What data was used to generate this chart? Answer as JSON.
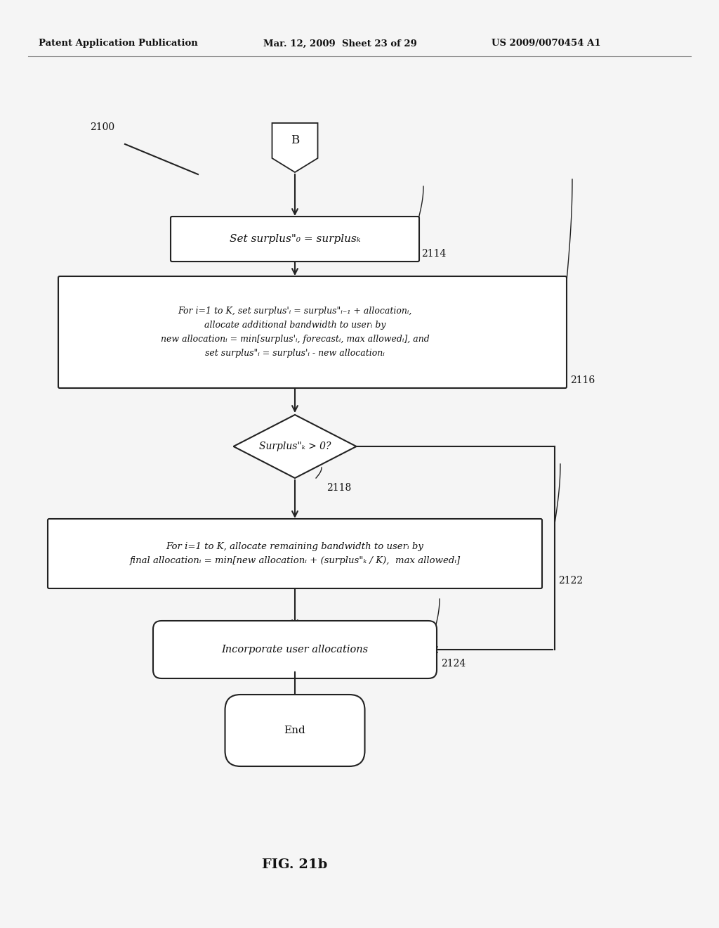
{
  "header_left": "Patent Application Publication",
  "header_center": "Mar. 12, 2009  Sheet 23 of 29",
  "header_right": "US 2009/0070454 A1",
  "fig_label": "FIG. 21b",
  "ref_2100": "2100",
  "ref_2114": "2114",
  "ref_2116": "2116",
  "ref_2118": "2118",
  "ref_2122": "2122",
  "ref_2124": "2124",
  "connector_label": "B",
  "box1_text": "Set surplus\"₀ = surplusₖ",
  "box2_line1": "For i=1 to K, set surplus'ᵢ = surplus\"ᵢ₋₁ + allocationᵢ,",
  "box2_line2": "allocate additional bandwidth to userᵢ by",
  "box2_line3": "new allocationᵢ = min[surplus'ᵢ, forecastᵢ, max allowedᵢ], and",
  "box2_line4": "set surplus\"ᵢ = surplus'ᵢ - new allocationᵢ",
  "diamond_text": "Surplus\"ₖ > 0?",
  "box3_line1": "For i=1 to K, allocate remaining bandwidth to userᵢ by",
  "box3_line2": "final allocationᵢ = min[new allocationᵢ + (surplus\"ₖ / K),  max allowedᵢ]",
  "box4_text": "Incorporate user allocations",
  "end_text": "End",
  "bg_color": "#f5f5f5",
  "box_edge_color": "#222222",
  "text_color": "#111111",
  "line_color": "#222222"
}
